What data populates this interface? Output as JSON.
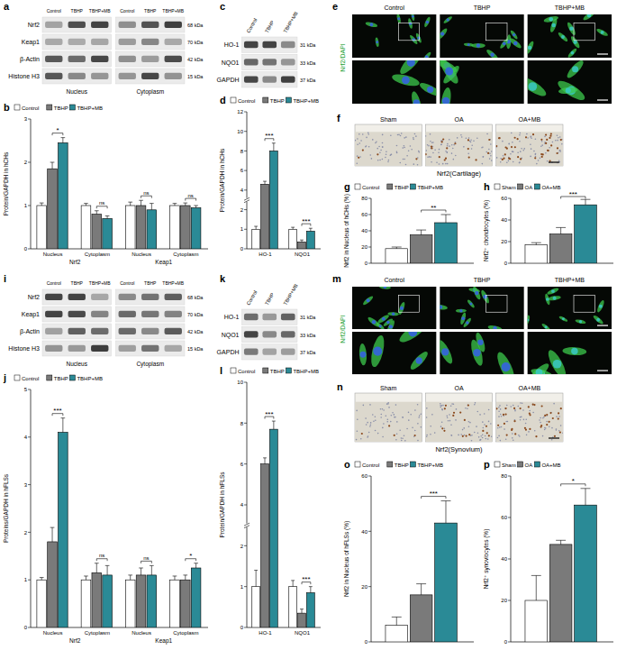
{
  "blots": [
    {
      "label": "a",
      "columns": [
        "Control",
        "TBHP",
        "TBHP+MB"
      ],
      "sections": [
        "Nucleus",
        "Cytoplasm"
      ],
      "rows": [
        {
          "name": "Nrf2",
          "kda": "68 kDa"
        },
        {
          "name": "Keap1",
          "kda": "70 kDa"
        },
        {
          "name": "β-Actin",
          "kda": "42 kDa"
        },
        {
          "name": "Histone H3",
          "kda": "15 kDa"
        }
      ]
    },
    {
      "label": "c",
      "columns": [
        "Control",
        "TBHP",
        "TBHP+MB"
      ],
      "sections": [],
      "rows": [
        {
          "name": "HO-1",
          "kda": "31 kDa"
        },
        {
          "name": "NQO1",
          "kda": "33 kDa"
        },
        {
          "name": "GAPDH",
          "kda": "37 kDa"
        }
      ]
    },
    {
      "label": "i",
      "columns": [
        "Control",
        "TBHP",
        "TBHP+MB"
      ],
      "sections": [
        "Nucleus",
        "Cytoplasm"
      ],
      "rows": [
        {
          "name": "Nrf2",
          "kda": "68 kDa"
        },
        {
          "name": "Keap1",
          "kda": "70 kDa"
        },
        {
          "name": "β-Actin",
          "kda": "42 kDa"
        },
        {
          "name": "Histone H3",
          "kda": "15 kDa"
        }
      ]
    },
    {
      "label": "k",
      "columns": [
        "Control",
        "TBHP",
        "TBHP+MB"
      ],
      "sections": [],
      "rows": [
        {
          "name": "HO-1",
          "kda": "31 kDa"
        },
        {
          "name": "NQO1",
          "kda": "33 kDa"
        },
        {
          "name": "GAPDH",
          "kda": "37 kDa"
        }
      ]
    }
  ],
  "images": [
    {
      "label": "e",
      "kind": "fluorescence",
      "stain": "Nrf2/DAPI",
      "columns": [
        "Control",
        "TBHP",
        "TBHP+MB"
      ]
    },
    {
      "label": "f",
      "kind": "ihc",
      "caption": "Nrf2(Cartilage)",
      "columns": [
        "Sham",
        "OA",
        "OA+MB"
      ]
    },
    {
      "label": "m",
      "kind": "fluorescence",
      "stain": "Nrf2/DAPI",
      "columns": [
        "Control",
        "TBHP",
        "TBHP+MB"
      ]
    },
    {
      "label": "n",
      "kind": "ihc",
      "caption": "Nrf2(Synovium)",
      "columns": [
        "Sham",
        "OA",
        "OA+MB"
      ]
    }
  ],
  "chart_data": [
    {
      "label": "b",
      "type": "bar",
      "y_label": "Protein/GAPDH in hCHs",
      "legend": "top",
      "categories": [
        "Nucleus",
        "Cytoplasm",
        "Nucleus",
        "Cytoplasm"
      ],
      "groups": [
        "Nrf2",
        "Nrf2",
        "Keap1",
        "Keap1"
      ],
      "series": [
        {
          "name": "Control",
          "color": "#ffffff",
          "values": [
            1.0,
            1.0,
            1.0,
            1.0
          ],
          "errors": [
            0.06,
            0.05,
            0.08,
            0.05
          ]
        },
        {
          "name": "TBHP",
          "color": "#7a7a7a",
          "values": [
            1.85,
            0.8,
            1.0,
            1.0
          ],
          "errors": [
            0.15,
            0.08,
            0.12,
            0.06
          ]
        },
        {
          "name": "TBHP+MB",
          "color": "#2a8a96",
          "values": [
            2.45,
            0.7,
            0.9,
            0.95
          ],
          "errors": [
            0.12,
            0.06,
            0.15,
            0.05
          ]
        }
      ],
      "significance": [
        "*",
        "ns",
        "ns",
        "ns"
      ],
      "ylim": [
        0,
        3
      ],
      "yticks": [
        0,
        1,
        2,
        3
      ]
    },
    {
      "label": "d",
      "type": "bar",
      "y_label": "Protein/GAPDH in hCHs",
      "legend": "top",
      "categories": [
        "HO-1",
        "NQO1"
      ],
      "series": [
        {
          "name": "Control",
          "color": "#ffffff",
          "values": [
            1.0,
            1.0
          ],
          "errors": [
            0.15,
            0.1
          ]
        },
        {
          "name": "TBHP",
          "color": "#7a7a7a",
          "values": [
            4.6,
            0.35
          ],
          "errors": [
            0.3,
            0.1
          ]
        },
        {
          "name": "TBHP+MB",
          "color": "#2a8a96",
          "values": [
            8.0,
            0.9
          ],
          "errors": [
            0.8,
            0.15
          ]
        }
      ],
      "significance": [
        "***",
        "***"
      ],
      "ylim": [
        0,
        12
      ],
      "yticks": [
        0,
        1,
        2,
        4,
        6,
        8,
        10,
        12
      ]
    },
    {
      "label": "g",
      "type": "bar",
      "y_label": "Nrf2 in Nucleus of hCHs (%)",
      "legend": "top",
      "categories": [
        null
      ],
      "series": [
        {
          "name": "Control",
          "color": "#ffffff",
          "values": [
            18
          ],
          "errors": [
            2
          ]
        },
        {
          "name": "TBHP",
          "color": "#7a7a7a",
          "values": [
            35
          ],
          "errors": [
            6
          ]
        },
        {
          "name": "TBHP+MB",
          "color": "#2a8a96",
          "values": [
            50
          ],
          "errors": [
            10
          ]
        }
      ],
      "significance": [
        "**"
      ],
      "ylim": [
        0,
        80
      ],
      "yticks": [
        0,
        20,
        40,
        60,
        80
      ]
    },
    {
      "label": "h",
      "type": "bar",
      "y_label": "Nrf2⁺ chondrocytes (%)",
      "legend": "top",
      "categories": [
        null
      ],
      "series": [
        {
          "name": "Sham",
          "color": "#ffffff",
          "values": [
            17
          ],
          "errors": [
            2
          ]
        },
        {
          "name": "OA",
          "color": "#7a7a7a",
          "values": [
            27
          ],
          "errors": [
            6
          ]
        },
        {
          "name": "OA+MB",
          "color": "#2a8a96",
          "values": [
            54
          ],
          "errors": [
            5
          ]
        }
      ],
      "significance": [
        "***"
      ],
      "ylim": [
        0,
        60
      ],
      "yticks": [
        0,
        20,
        40,
        60
      ]
    },
    {
      "label": "j",
      "type": "bar",
      "y_label": "Proteins/GAPDH in hFLSs",
      "legend": "top",
      "categories": [
        "Nucleus",
        "Cytoplasm",
        "Nucleus",
        "Cytoplasm"
      ],
      "groups": [
        "Nrf2",
        "Nrf2",
        "Keap1",
        "Keap1"
      ],
      "series": [
        {
          "name": "Control",
          "color": "#ffffff",
          "values": [
            1.0,
            1.0,
            1.0,
            1.0
          ],
          "errors": [
            0.05,
            0.08,
            0.1,
            0.08
          ]
        },
        {
          "name": "TBHP",
          "color": "#7a7a7a",
          "values": [
            1.8,
            1.15,
            1.1,
            1.0
          ],
          "errors": [
            0.3,
            0.2,
            0.15,
            0.1
          ]
        },
        {
          "name": "TBHP+MB",
          "color": "#2a8a96",
          "values": [
            4.1,
            1.1,
            1.1,
            1.25
          ],
          "errors": [
            0.3,
            0.2,
            0.2,
            0.1
          ]
        }
      ],
      "significance": [
        "***",
        "ns",
        "ns",
        "*"
      ],
      "ylim": [
        0,
        5
      ],
      "yticks": [
        0,
        1,
        2,
        3,
        4,
        5
      ]
    },
    {
      "label": "l",
      "type": "bar",
      "y_label": "Protein/GAPDH in hFLSs",
      "legend": "top",
      "categories": [
        "HO-1",
        "NQO1"
      ],
      "series": [
        {
          "name": "Control",
          "color": "#ffffff",
          "values": [
            1.0,
            1.0
          ],
          "errors": [
            0.4,
            0.15
          ]
        },
        {
          "name": "TBHP",
          "color": "#7a7a7a",
          "values": [
            6.0,
            0.35
          ],
          "errors": [
            0.3,
            0.1
          ]
        },
        {
          "name": "TBHP+MB",
          "color": "#2a8a96",
          "values": [
            7.7,
            0.85
          ],
          "errors": [
            0.4,
            0.15
          ]
        }
      ],
      "significance": [
        "***",
        "***"
      ],
      "ylim": [
        0,
        10
      ],
      "yticks": [
        0,
        1,
        2,
        4,
        6,
        8,
        10
      ]
    },
    {
      "label": "o",
      "type": "bar",
      "y_label": "Nrf2 in Nucleus of hFLSs (%)",
      "legend": "top",
      "categories": [
        null
      ],
      "series": [
        {
          "name": "Control",
          "color": "#ffffff",
          "values": [
            6
          ],
          "errors": [
            3
          ]
        },
        {
          "name": "TBHP",
          "color": "#7a7a7a",
          "values": [
            17
          ],
          "errors": [
            4
          ]
        },
        {
          "name": "TBHP+MB",
          "color": "#2a8a96",
          "values": [
            43
          ],
          "errors": [
            8
          ]
        }
      ],
      "significance": [
        "***"
      ],
      "ylim": [
        0,
        60
      ],
      "yticks": [
        0,
        20,
        40,
        60
      ]
    },
    {
      "label": "p",
      "type": "bar",
      "y_label": "Nrf2⁺ synoviocytes (%)",
      "legend": "top",
      "categories": [
        null
      ],
      "series": [
        {
          "name": "Sham",
          "color": "#ffffff",
          "values": [
            20
          ],
          "errors": [
            12
          ]
        },
        {
          "name": "OA",
          "color": "#7a7a7a",
          "values": [
            47
          ],
          "errors": [
            2
          ]
        },
        {
          "name": "OA+MB",
          "color": "#2a8a96",
          "values": [
            66
          ],
          "errors": [
            8
          ]
        }
      ],
      "significance": [
        "*"
      ],
      "ylim": [
        0,
        80
      ],
      "yticks": [
        0,
        20,
        40,
        60,
        80
      ]
    }
  ]
}
